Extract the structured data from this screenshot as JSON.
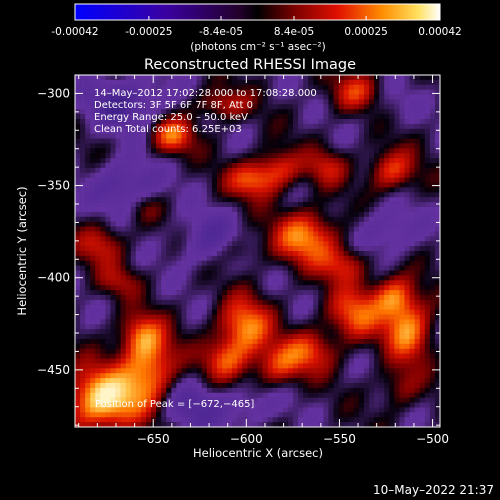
{
  "colorbar": {
    "tick_labels": [
      "-0.00042",
      "-0.00025",
      "-8.4e-05",
      "8.4e-05",
      "0.00025",
      "0.00042"
    ],
    "tick_values": [
      -0.00042,
      -0.00025,
      -8.4e-05,
      8.4e-05,
      0.00025,
      0.00042
    ],
    "range": [
      -0.00042,
      0.00042
    ],
    "units_label": "(photons cm⁻² s⁻¹ asec⁻²)"
  },
  "chart_data": {
    "type": "heatmap",
    "title": "Reconstructed RHESSI Image",
    "xlabel": "Heliocentric X (arcsec)",
    "ylabel": "Heliocentric Y (arcsec)",
    "xlim": [
      -692,
      -496
    ],
    "ylim": [
      -481,
      -290
    ],
    "x_ticks": [
      -650,
      -600,
      -550,
      -500
    ],
    "x_tick_labels": [
      "−650",
      "−600",
      "−550",
      "−500"
    ],
    "y_ticks": [
      -300,
      -350,
      -400,
      -450
    ],
    "y_tick_labels": [
      "−300",
      "−350",
      "−400",
      "−450"
    ],
    "info_lines": [
      "14–May–2012 17:02:28.000 to 17:08:28.000",
      "Detectors: 3F 5F 6F 7F 8F, Att 0",
      "Energy Range: 25.0 – 50.0 keV",
      "Clean     Total counts: 6.25E+03"
    ],
    "peak_label": "Position of Peak = [−672,−465]",
    "peak": [
      -672,
      -465
    ],
    "blobs": [
      {
        "x": -677,
        "y": -466,
        "amp": 1.15,
        "sx": 14,
        "sy": 12
      },
      {
        "x": -652,
        "y": -449,
        "amp": 0.85,
        "sx": 10,
        "sy": 14
      },
      {
        "x": -657,
        "y": -431,
        "amp": 0.55,
        "sx": 8,
        "sy": 8
      },
      {
        "x": -601,
        "y": -427,
        "amp": 0.85,
        "sx": 10,
        "sy": 11
      },
      {
        "x": -611,
        "y": -445,
        "amp": 0.6,
        "sx": 9,
        "sy": 8
      },
      {
        "x": -583,
        "y": -448,
        "amp": 0.55,
        "sx": 9,
        "sy": 8
      },
      {
        "x": -566,
        "y": -440,
        "amp": 0.6,
        "sx": 10,
        "sy": 8
      },
      {
        "x": -542,
        "y": -420,
        "amp": 0.7,
        "sx": 10,
        "sy": 10
      },
      {
        "x": -513,
        "y": -428,
        "amp": 0.85,
        "sx": 9,
        "sy": 12
      },
      {
        "x": -521,
        "y": -410,
        "amp": 0.7,
        "sx": 8,
        "sy": 8
      },
      {
        "x": -568,
        "y": -378,
        "amp": 0.85,
        "sx": 12,
        "sy": 10
      },
      {
        "x": -548,
        "y": -393,
        "amp": 0.55,
        "sx": 9,
        "sy": 7
      },
      {
        "x": -596,
        "y": -347,
        "amp": 0.7,
        "sx": 10,
        "sy": 7
      },
      {
        "x": -582,
        "y": -340,
        "amp": 0.5,
        "sx": 8,
        "sy": 7
      },
      {
        "x": -640,
        "y": -323,
        "amp": 0.75,
        "sx": 8,
        "sy": 7
      },
      {
        "x": -613,
        "y": -306,
        "amp": 0.5,
        "sx": 10,
        "sy": 6
      },
      {
        "x": -540,
        "y": -300,
        "amp": 0.65,
        "sx": 10,
        "sy": 8
      },
      {
        "x": -557,
        "y": -340,
        "amp": 0.45,
        "sx": 8,
        "sy": 7
      },
      {
        "x": -522,
        "y": -342,
        "amp": 0.65,
        "sx": 9,
        "sy": 8
      },
      {
        "x": -678,
        "y": -382,
        "amp": 0.5,
        "sx": 9,
        "sy": 8
      },
      {
        "x": -668,
        "y": -402,
        "amp": 0.35,
        "sx": 8,
        "sy": 6
      },
      {
        "x": -655,
        "y": -362,
        "amp": 0.25,
        "sx": 7,
        "sy": 6
      },
      {
        "x": -518,
        "y": -460,
        "amp": 0.35,
        "sx": 8,
        "sy": 8
      },
      {
        "x": -604,
        "y": -385,
        "amp": 0.3,
        "sx": 8,
        "sy": 6
      },
      {
        "x": -665,
        "y": -305,
        "amp": -0.55,
        "sx": 15,
        "sy": 10
      },
      {
        "x": -665,
        "y": -350,
        "amp": -0.5,
        "sx": 12,
        "sy": 10
      },
      {
        "x": -530,
        "y": -305,
        "amp": -0.25,
        "sx": 12,
        "sy": 8
      },
      {
        "x": -620,
        "y": -380,
        "amp": -0.4,
        "sx": 12,
        "sy": 10
      },
      {
        "x": -630,
        "y": -470,
        "amp": -0.4,
        "sx": 12,
        "sy": 10
      },
      {
        "x": -525,
        "y": -375,
        "amp": -0.35,
        "sx": 12,
        "sy": 10
      },
      {
        "x": -600,
        "y": -470,
        "amp": -0.3,
        "sx": 12,
        "sy": 8
      }
    ]
  },
  "footer": {
    "timestamp": "10–May–2022 21:37"
  }
}
